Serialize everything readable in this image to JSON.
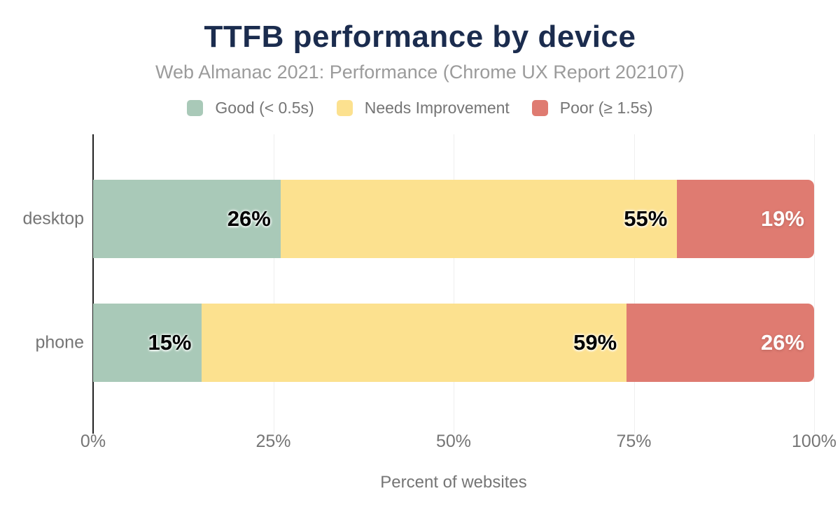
{
  "chart_data": {
    "type": "bar",
    "orientation": "horizontal",
    "stacked": true,
    "title": "TTFB performance by device",
    "subtitle": "Web Almanac 2021: Performance (Chrome UX Report 202107)",
    "categories": [
      "desktop",
      "phone"
    ],
    "series": [
      {
        "name": "Good (< 0.5s)",
        "color": "#a9c9b8",
        "label_color": "dark",
        "values": [
          26,
          15
        ]
      },
      {
        "name": "Needs Improvement",
        "color": "#fce18f",
        "label_color": "dark",
        "values": [
          55,
          59
        ]
      },
      {
        "name": "Poor (≥ 1.5s)",
        "color": "#df7b71",
        "label_color": "light",
        "values": [
          19,
          26
        ]
      }
    ],
    "value_suffix": "%",
    "xlabel": "Percent of websites",
    "x_ticks": [
      "0%",
      "25%",
      "50%",
      "75%",
      "100%"
    ],
    "xlim": [
      0,
      100
    ],
    "grid": "vertical",
    "legend_position": "top"
  },
  "palette": {
    "title-navy": "#1b2c4e",
    "subtitle-gray": "#9b9b9b",
    "axis-text": "#757575",
    "gridline": "#efefef",
    "axis-line": "#212121",
    "bg": "#ffffff"
  }
}
